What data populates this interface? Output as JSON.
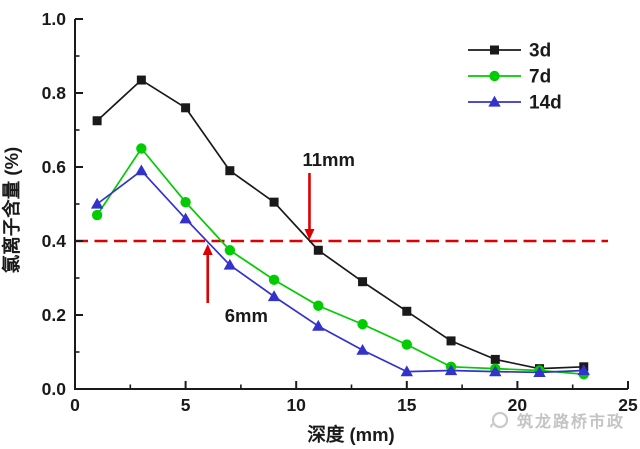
{
  "chart_data": {
    "type": "line",
    "title": "",
    "xlabel": "深度 (mm)",
    "ylabel": "氯离子含量 (%)",
    "xlim": [
      0,
      25
    ],
    "ylim": [
      0.0,
      1.0
    ],
    "grid": false,
    "legend_position": "top-right",
    "axis_color": "#1a1a1a",
    "x_ticks": {
      "values": [
        0,
        5,
        10,
        15,
        20,
        25
      ],
      "labels": [
        "0",
        "5",
        "10",
        "15",
        "20",
        "25"
      ],
      "minor": [
        2.5,
        7.5,
        12.5,
        17.5,
        22.5
      ]
    },
    "y_ticks": {
      "values": [
        0.0,
        0.2,
        0.4,
        0.6,
        0.8,
        1.0
      ],
      "labels": [
        "0.0",
        "0.2",
        "0.4",
        "0.6",
        "0.8",
        "1.0"
      ],
      "minor": [
        0.1,
        0.3,
        0.5,
        0.7,
        0.9
      ]
    },
    "x": [
      1,
      3,
      5,
      7,
      9,
      11,
      13,
      15,
      17,
      19,
      21,
      23
    ],
    "series": [
      {
        "name": "3d",
        "marker": "square",
        "color": "#1a1a1a",
        "values": [
          0.725,
          0.835,
          0.76,
          0.59,
          0.505,
          0.375,
          0.29,
          0.21,
          0.13,
          0.08,
          0.055,
          0.06
        ]
      },
      {
        "name": "7d",
        "marker": "circle",
        "color": "#00cc00",
        "values": [
          0.47,
          0.65,
          0.505,
          0.375,
          0.295,
          0.225,
          0.175,
          0.12,
          0.06,
          0.055,
          0.05,
          0.04
        ]
      },
      {
        "name": "14d",
        "marker": "triangle",
        "color": "#3333cc",
        "values": [
          0.5,
          0.59,
          0.46,
          0.335,
          0.25,
          0.17,
          0.105,
          0.047,
          0.05,
          0.047,
          0.045,
          0.05
        ]
      }
    ],
    "threshold_line": {
      "y": 0.4,
      "color": "#dd0000",
      "style": "dashed"
    },
    "annotations": [
      {
        "text": "11mm",
        "arrow": "down",
        "x": 10.6,
        "points_to_y": 0.4,
        "color": "#dd0000",
        "text_color": "#1a1a1a"
      },
      {
        "text": "6mm",
        "arrow": "up",
        "x": 6.0,
        "points_to_y": 0.4,
        "color": "#dd0000",
        "text_color": "#1a1a1a"
      }
    ]
  },
  "watermark": {
    "text": "筑龙路桥市政",
    "color": "#c4c4c4"
  }
}
